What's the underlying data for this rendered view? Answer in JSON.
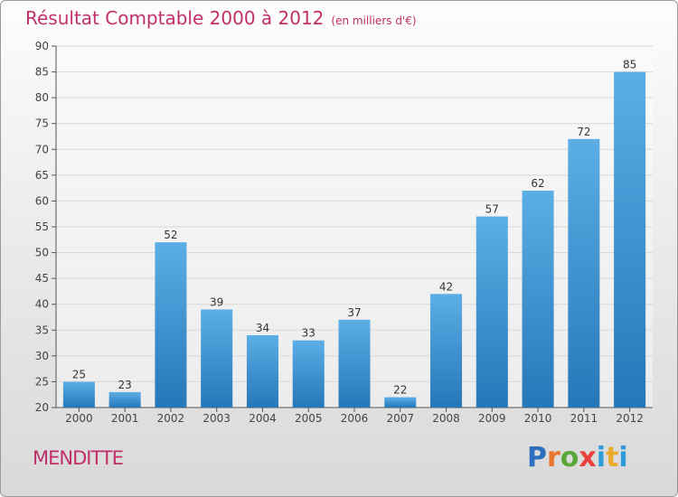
{
  "header": {
    "title": "Résultat Comptable 2000 à 2012",
    "subtitle": "(en milliers d'€)"
  },
  "footer": {
    "commune": "MENDITTE",
    "logo_letters": [
      "P",
      "r",
      "o",
      "x",
      "i",
      "t",
      "i"
    ]
  },
  "colors": {
    "title": "#c0306a",
    "bar_top": "#5caee6",
    "bar_bottom": "#2577b8",
    "grid": "#d7d7d7"
  },
  "chart_data": {
    "type": "bar",
    "title": "Résultat Comptable 2000 à 2012",
    "subtitle": "(en milliers d'€)",
    "xlabel": "",
    "ylabel": "",
    "categories": [
      "2000",
      "2001",
      "2002",
      "2003",
      "2004",
      "2005",
      "2006",
      "2007",
      "2008",
      "2009",
      "2010",
      "2011",
      "2012"
    ],
    "values": [
      25,
      23,
      52,
      39,
      34,
      33,
      37,
      22,
      42,
      57,
      62,
      72,
      85
    ],
    "ylim": [
      20,
      90
    ],
    "yticks": [
      "20",
      "25",
      "30",
      "35",
      "40",
      "45",
      "50",
      "55",
      "60",
      "65",
      "70",
      "75",
      "80",
      "85",
      "90"
    ],
    "grid": true,
    "legend": "none"
  }
}
